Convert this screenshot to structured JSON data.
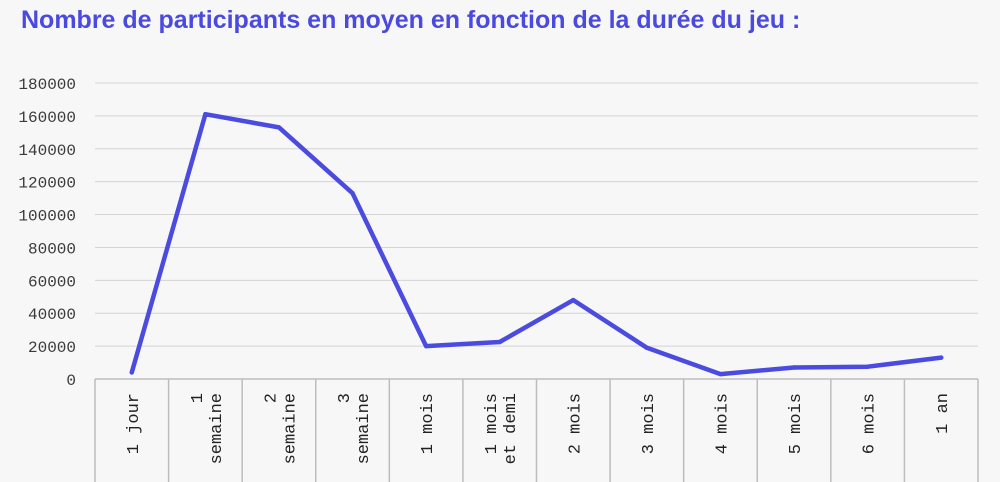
{
  "title": "Nombre de participants en moyen en fonction de la durée du jeu :",
  "colors": {
    "line": "#4b4be0",
    "grid": "#d4d4d4",
    "axis": "#bdbdbd",
    "title": "#4a4ae0"
  },
  "chart_data": {
    "type": "line",
    "title": "Nombre de participants en moyen en fonction de la durée du jeu :",
    "xlabel": "",
    "ylabel": "",
    "categories": [
      [
        "1 jour"
      ],
      [
        "1",
        "semaine"
      ],
      [
        "2",
        "semaine"
      ],
      [
        "3",
        "semaine"
      ],
      [
        "1 mois"
      ],
      [
        "1 mois",
        "et demi"
      ],
      [
        "2 mois"
      ],
      [
        "3 mois"
      ],
      [
        "4 mois"
      ],
      [
        "5 mois"
      ],
      [
        "6 mois"
      ],
      [
        "1 an"
      ]
    ],
    "values": [
      4000,
      161000,
      153000,
      113000,
      20000,
      22500,
      48000,
      19000,
      3000,
      7000,
      7500,
      13000
    ],
    "ylim": [
      0,
      180000
    ],
    "yticks": [
      "0",
      "20000",
      "40000",
      "60000",
      "80000",
      "100000",
      "120000",
      "140000",
      "160000",
      "180000"
    ],
    "grid": true,
    "legend": "none"
  }
}
